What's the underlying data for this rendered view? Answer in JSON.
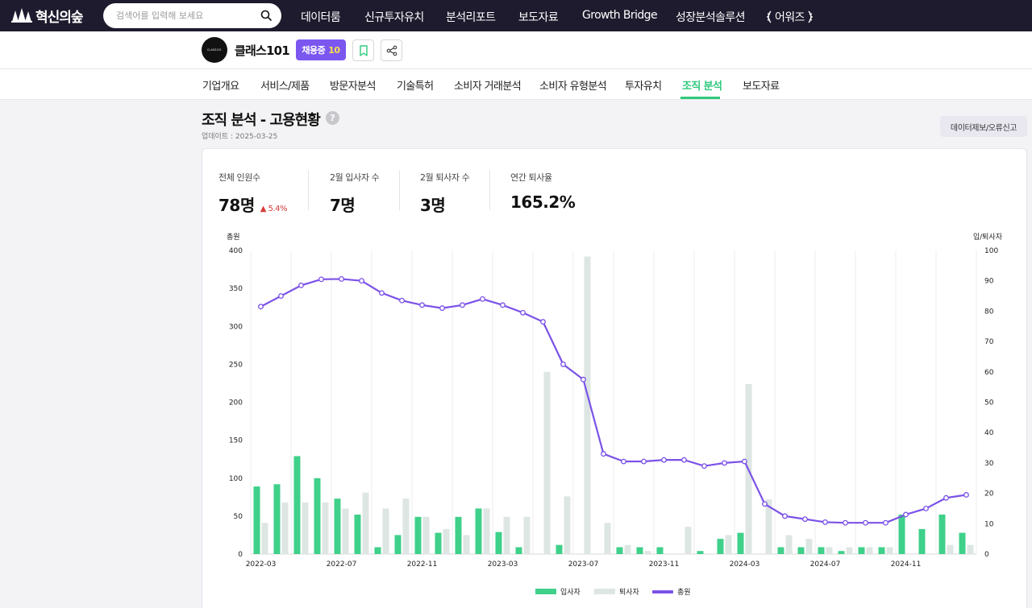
{
  "topbar": {
    "brand": "혁신의숲",
    "search_placeholder": "검색어를 입력해 보세요",
    "nav": [
      "데이터룸",
      "신규투자유치",
      "분석리포트",
      "보도자료",
      "Growth Bridge",
      "성장분석솔루션",
      "어워즈"
    ]
  },
  "company": {
    "logo_text": "CLASS101",
    "name": "클래스101",
    "hiring_label": "채용중",
    "hiring_count": "10"
  },
  "tabs": [
    "기업개요",
    "서비스/제품",
    "방문자분석",
    "기술특허",
    "소비자 거래분석",
    "소비자 유형분석",
    "투자유치",
    "조직 분석",
    "보도자료"
  ],
  "active_tab": "조직 분석",
  "header": {
    "title": "조직 분석 - 고용현황",
    "help": "?",
    "updated": "업데이트 : 2025-03-25",
    "report_button": "데이터제보/오류신고"
  },
  "stats": [
    {
      "label": "전체 인원수",
      "value": "78명",
      "delta": "▲ 5.4%"
    },
    {
      "label": "2월 입사자 수",
      "value": "7명"
    },
    {
      "label": "2월 퇴사자 수",
      "value": "3명"
    },
    {
      "label": "연간 퇴사율",
      "value": "165.2%"
    }
  ],
  "colors": {
    "hires": "#3fd08a",
    "leavers": "#dde6e3",
    "total": "#7b52e8",
    "accent": "#2fc97c"
  },
  "chart_data": {
    "type": "bar+line",
    "left_axis_label": "총원",
    "right_axis_label": "입/퇴사자",
    "left_ylim": [
      0,
      400
    ],
    "left_ticks": [
      0,
      50,
      100,
      150,
      200,
      250,
      300,
      350,
      400
    ],
    "right_ylim": [
      0,
      100
    ],
    "right_ticks": [
      0,
      10,
      20,
      30,
      40,
      50,
      60,
      70,
      80,
      90,
      100
    ],
    "x_tick_labels": [
      "2022-03",
      "2022-07",
      "2022-11",
      "2023-03",
      "2023-07",
      "2023-11",
      "2024-03",
      "2024-07",
      "2024-11"
    ],
    "x_tick_indices": [
      0,
      4,
      8,
      12,
      16,
      20,
      24,
      28,
      32
    ],
    "months": [
      "2022-03",
      "2022-04",
      "2022-05",
      "2022-06",
      "2022-07",
      "2022-08",
      "2022-09",
      "2022-10",
      "2022-11",
      "2022-12",
      "2023-01",
      "2023-02",
      "2023-03",
      "2023-04",
      "2023-05",
      "2023-06",
      "2023-07",
      "2023-08",
      "2023-09",
      "2023-10",
      "2023-11",
      "2023-12",
      "2024-01",
      "2024-02",
      "2024-03",
      "2024-04",
      "2024-05",
      "2024-06",
      "2024-07",
      "2024-08",
      "2024-09",
      "2024-10",
      "2024-11",
      "2024-12",
      "2025-01",
      "2025-02"
    ],
    "grid": "vertical",
    "legend_position": "bottom-center",
    "series": [
      {
        "name": "입사자",
        "kind": "bar",
        "axis": "left",
        "values": [
          89,
          92,
          129,
          100,
          73,
          52,
          9,
          25,
          49,
          28,
          49,
          60,
          29,
          9,
          0,
          12,
          0,
          0,
          9,
          9,
          9,
          0,
          4,
          20,
          28,
          0,
          9,
          9,
          9,
          4,
          9,
          9,
          52,
          33,
          52,
          28
        ]
      },
      {
        "name": "퇴사자",
        "kind": "bar",
        "axis": "left",
        "values": [
          41,
          68,
          68,
          68,
          60,
          81,
          60,
          73,
          49,
          33,
          25,
          60,
          49,
          49,
          240,
          76,
          392,
          41,
          12,
          4,
          0,
          36,
          0,
          25,
          224,
          72,
          25,
          20,
          9,
          9,
          9,
          9,
          0,
          0,
          12,
          12
        ]
      },
      {
        "name": "총원",
        "kind": "line",
        "axis": "right",
        "values": [
          81.5,
          85,
          88.5,
          90.5,
          90.6,
          90,
          86,
          83.5,
          82,
          81,
          82,
          84,
          82,
          79.5,
          76.5,
          62.5,
          57.5,
          33,
          30.5,
          30.5,
          31,
          31,
          29,
          30,
          30.5,
          16.5,
          12.5,
          11.5,
          10.5,
          10.3,
          10.3,
          10.3,
          13,
          15,
          18.5,
          19.5
        ]
      }
    ]
  }
}
